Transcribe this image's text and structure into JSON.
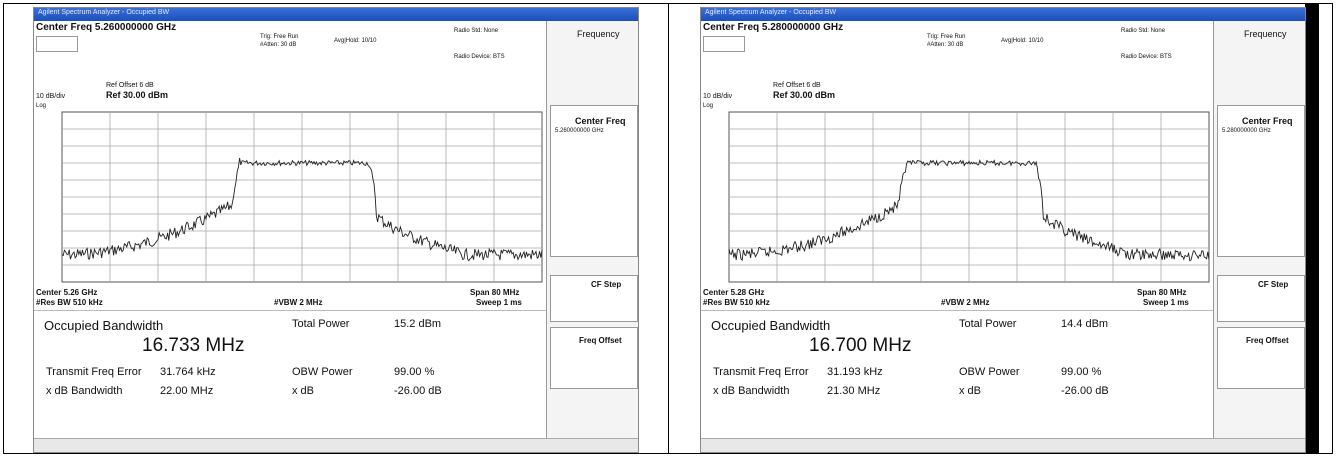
{
  "panels": [
    {
      "window_title": "Agilent Spectrum Analyzer - Occupied BW",
      "center_freq": "Center Freq 5.260000000 GHz",
      "trig": "Trig: Free Run",
      "atten": "#Atten: 30 dB",
      "avg": "Avg|Hold: 10/10",
      "radio_std": "Radio Std: None",
      "radio_device": "Radio Device: BTS",
      "ref_offset": "Ref Offset 6 dB",
      "ref_level": "Ref 30.00 dBm",
      "scale": "10 dB/div",
      "log": "Log",
      "center": "Center 5.26 GHz",
      "res_bw": "#Res BW 510 kHz",
      "vbw": "#VBW 2 MHz",
      "span": "Span 80 MHz",
      "sweep": "Sweep 1 ms",
      "meas_title": "Occupied Bandwidth",
      "obw": "16.733 MHz",
      "total_power_label": "Total Power",
      "total_power": "15.2 dBm",
      "rows": [
        [
          "Transmit Freq Error",
          "31.764 kHz",
          "OBW Power",
          "99.00 %"
        ],
        [
          "x dB Bandwidth",
          "22.00 MHz",
          "x dB",
          "-26.00 dB"
        ]
      ],
      "menu": {
        "title": "Frequency",
        "center_freq": "Center Freq",
        "center_value": "5.260000000 GHz",
        "cf_step": "CF Step",
        "freq_offset": "Freq Offset"
      }
    },
    {
      "window_title": "Agilent Spectrum Analyzer - Occupied BW",
      "center_freq": "Center Freq 5.280000000 GHz",
      "trig": "Trig: Free Run",
      "atten": "#Atten: 30 dB",
      "avg": "Avg|Hold: 10/10",
      "radio_std": "Radio Std: None",
      "radio_device": "Radio Device: BTS",
      "ref_offset": "Ref Offset 6 dB",
      "ref_level": "Ref 30.00 dBm",
      "scale": "10 dB/div",
      "log": "Log",
      "center": "Center 5.28 GHz",
      "res_bw": "#Res BW 510 kHz",
      "vbw": "#VBW 2 MHz",
      "span": "Span 80 MHz",
      "sweep": "Sweep 1 ms",
      "meas_title": "Occupied Bandwidth",
      "obw": "16.700 MHz",
      "total_power_label": "Total Power",
      "total_power": "14.4 dBm",
      "rows": [
        [
          "Transmit Freq Error",
          "31.193 kHz",
          "OBW Power",
          "99.00 %"
        ],
        [
          "x dB Bandwidth",
          "21.30 MHz",
          "x dB",
          "-26.00 dB"
        ]
      ],
      "menu": {
        "title": "Frequency",
        "center_freq": "Center Freq",
        "center_value": "5.280000000 GHz",
        "cf_step": "CF Step",
        "freq_offset": "Freq Offset"
      }
    }
  ]
}
